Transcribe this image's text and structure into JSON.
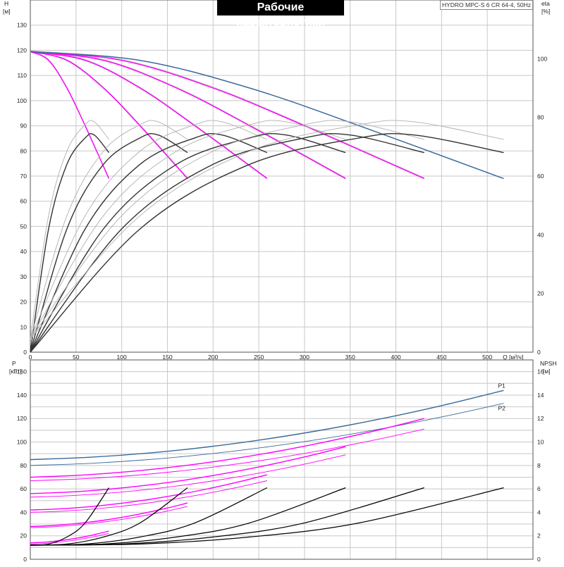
{
  "header": {
    "title": "Рабочие характеристики",
    "model": "HYDRO MPC-S 6 CR 64-4, 50Hz"
  },
  "colors": {
    "envelope": "#3a6a9a",
    "pump_curve": "#ff00ff",
    "thin_curve": "#b0b0b0",
    "eff_curve": "#000000",
    "npsh_curve": "#000000",
    "grid": "#c8c8c8"
  },
  "chart_data": [
    {
      "type": "line",
      "name": "head-efficiency",
      "xlabel": "Q [м³/ч]",
      "ylabel_left": [
        "H",
        "[м]"
      ],
      "ylabel_right": [
        "eta",
        "[%]"
      ],
      "xlim": [
        0,
        550
      ],
      "ylim_left": [
        0,
        140
      ],
      "ylim_right": [
        0,
        120
      ],
      "x_ticks": [
        "0",
        "50",
        "100",
        "150",
        "200",
        "250",
        "300",
        "350",
        "400",
        "450",
        "500"
      ],
      "y_ticks_left": [
        "0",
        "10",
        "20",
        "30",
        "40",
        "50",
        "60",
        "70",
        "80",
        "90",
        "100",
        "110",
        "120",
        "130"
      ],
      "y_ticks_right": [
        "0",
        "20",
        "40",
        "60",
        "80",
        "100"
      ],
      "grid": true,
      "head_series": [
        {
          "pumps": 1,
          "x": [
            0,
            20,
            40,
            60,
            86
          ],
          "y": [
            119.5,
            116,
            105,
            90,
            69
          ]
        },
        {
          "pumps": 2,
          "x": [
            0,
            40,
            80,
            120,
            172
          ],
          "y": [
            119.5,
            116,
            105,
            90,
            69
          ]
        },
        {
          "pumps": 3,
          "x": [
            0,
            60,
            120,
            180,
            259
          ],
          "y": [
            119.5,
            116,
            105,
            90,
            69
          ]
        },
        {
          "pumps": 4,
          "x": [
            0,
            80,
            160,
            240,
            345
          ],
          "y": [
            119.5,
            116,
            105,
            90,
            69
          ]
        },
        {
          "pumps": 5,
          "x": [
            0,
            100,
            200,
            300,
            431
          ],
          "y": [
            119.5,
            116,
            105,
            90,
            69
          ]
        },
        {
          "pumps": 6,
          "x": [
            0,
            120,
            240,
            360,
            518
          ],
          "y": [
            119.5,
            116,
            105,
            90,
            69
          ]
        }
      ],
      "eta_series": [
        {
          "pumps": 1,
          "x": [
            0,
            20,
            40,
            60,
            70,
            86
          ],
          "y": [
            0,
            42,
            64,
            73,
            74,
            68
          ]
        },
        {
          "pumps": 2,
          "x": [
            0,
            40,
            80,
            120,
            140,
            172
          ],
          "y": [
            0,
            42,
            64,
            73,
            74,
            68
          ]
        },
        {
          "pumps": 3,
          "x": [
            0,
            60,
            120,
            180,
            210,
            259
          ],
          "y": [
            0,
            42,
            64,
            73,
            74,
            68
          ]
        },
        {
          "pumps": 4,
          "x": [
            0,
            80,
            160,
            240,
            280,
            345
          ],
          "y": [
            0,
            42,
            64,
            73,
            74,
            68
          ]
        },
        {
          "pumps": 5,
          "x": [
            0,
            100,
            200,
            300,
            350,
            431
          ],
          "y": [
            0,
            42,
            64,
            73,
            74,
            68
          ]
        },
        {
          "pumps": 6,
          "x": [
            0,
            120,
            240,
            360,
            420,
            518
          ],
          "y": [
            0,
            42,
            64,
            73,
            74,
            68
          ]
        }
      ]
    },
    {
      "type": "line",
      "name": "power-npsh",
      "xlim": [
        0,
        550
      ],
      "ylabel_left": [
        "P",
        "[кВт]"
      ],
      "ylabel_right": [
        "NPSH",
        "[м]"
      ],
      "ylim_left": [
        0,
        170
      ],
      "ylim_right": [
        0,
        17
      ],
      "y_ticks_left": [
        "0",
        "20",
        "40",
        "60",
        "80",
        "100",
        "120",
        "140",
        "160"
      ],
      "y_ticks_right": [
        "0",
        "2",
        "4",
        "6",
        "8",
        "10",
        "12",
        "14",
        "16"
      ],
      "grid": true,
      "labels": {
        "p1": "P1",
        "p2": "P2"
      },
      "p1_series": [
        {
          "pumps": 1,
          "x": [
            0,
            86
          ],
          "y": [
            14,
            24
          ]
        },
        {
          "pumps": 2,
          "x": [
            0,
            172
          ],
          "y": [
            28,
            48
          ]
        },
        {
          "pumps": 3,
          "x": [
            0,
            259
          ],
          "y": [
            42,
            72
          ]
        },
        {
          "pumps": 4,
          "x": [
            0,
            345
          ],
          "y": [
            56,
            96
          ]
        },
        {
          "pumps": 5,
          "x": [
            0,
            431
          ],
          "y": [
            70,
            120
          ]
        },
        {
          "pumps": 6,
          "x": [
            0,
            518
          ],
          "y": [
            85,
            144
          ]
        }
      ],
      "p2_series": [
        {
          "pumps": 1,
          "x": [
            0,
            86
          ],
          "y": [
            13,
            22
          ]
        },
        {
          "pumps": 2,
          "x": [
            0,
            172
          ],
          "y": [
            27,
            45
          ]
        },
        {
          "pumps": 3,
          "x": [
            0,
            259
          ],
          "y": [
            40,
            67
          ]
        },
        {
          "pumps": 4,
          "x": [
            0,
            345
          ],
          "y": [
            53,
            89
          ]
        },
        {
          "pumps": 5,
          "x": [
            0,
            431
          ],
          "y": [
            67,
            111
          ]
        },
        {
          "pumps": 6,
          "x": [
            0,
            518
          ],
          "y": [
            80,
            133
          ]
        }
      ],
      "npsh_series": [
        {
          "pumps": 1,
          "x": [
            0,
            20,
            40,
            60,
            86
          ],
          "y": [
            1.2,
            1.3,
            1.9,
            3.1,
            6.1
          ]
        },
        {
          "pumps": 2,
          "x": [
            0,
            40,
            80,
            120,
            172
          ],
          "y": [
            1.2,
            1.3,
            1.9,
            3.1,
            6.1
          ]
        },
        {
          "pumps": 3,
          "x": [
            0,
            60,
            120,
            180,
            259
          ],
          "y": [
            1.2,
            1.3,
            1.9,
            3.1,
            6.1
          ]
        },
        {
          "pumps": 4,
          "x": [
            0,
            80,
            160,
            240,
            345
          ],
          "y": [
            1.2,
            1.3,
            1.9,
            3.1,
            6.1
          ]
        },
        {
          "pumps": 5,
          "x": [
            0,
            100,
            200,
            300,
            431
          ],
          "y": [
            1.2,
            1.3,
            1.9,
            3.1,
            6.1
          ]
        },
        {
          "pumps": 6,
          "x": [
            0,
            120,
            240,
            360,
            518
          ],
          "y": [
            1.2,
            1.3,
            1.9,
            3.1,
            6.1
          ]
        }
      ]
    }
  ]
}
